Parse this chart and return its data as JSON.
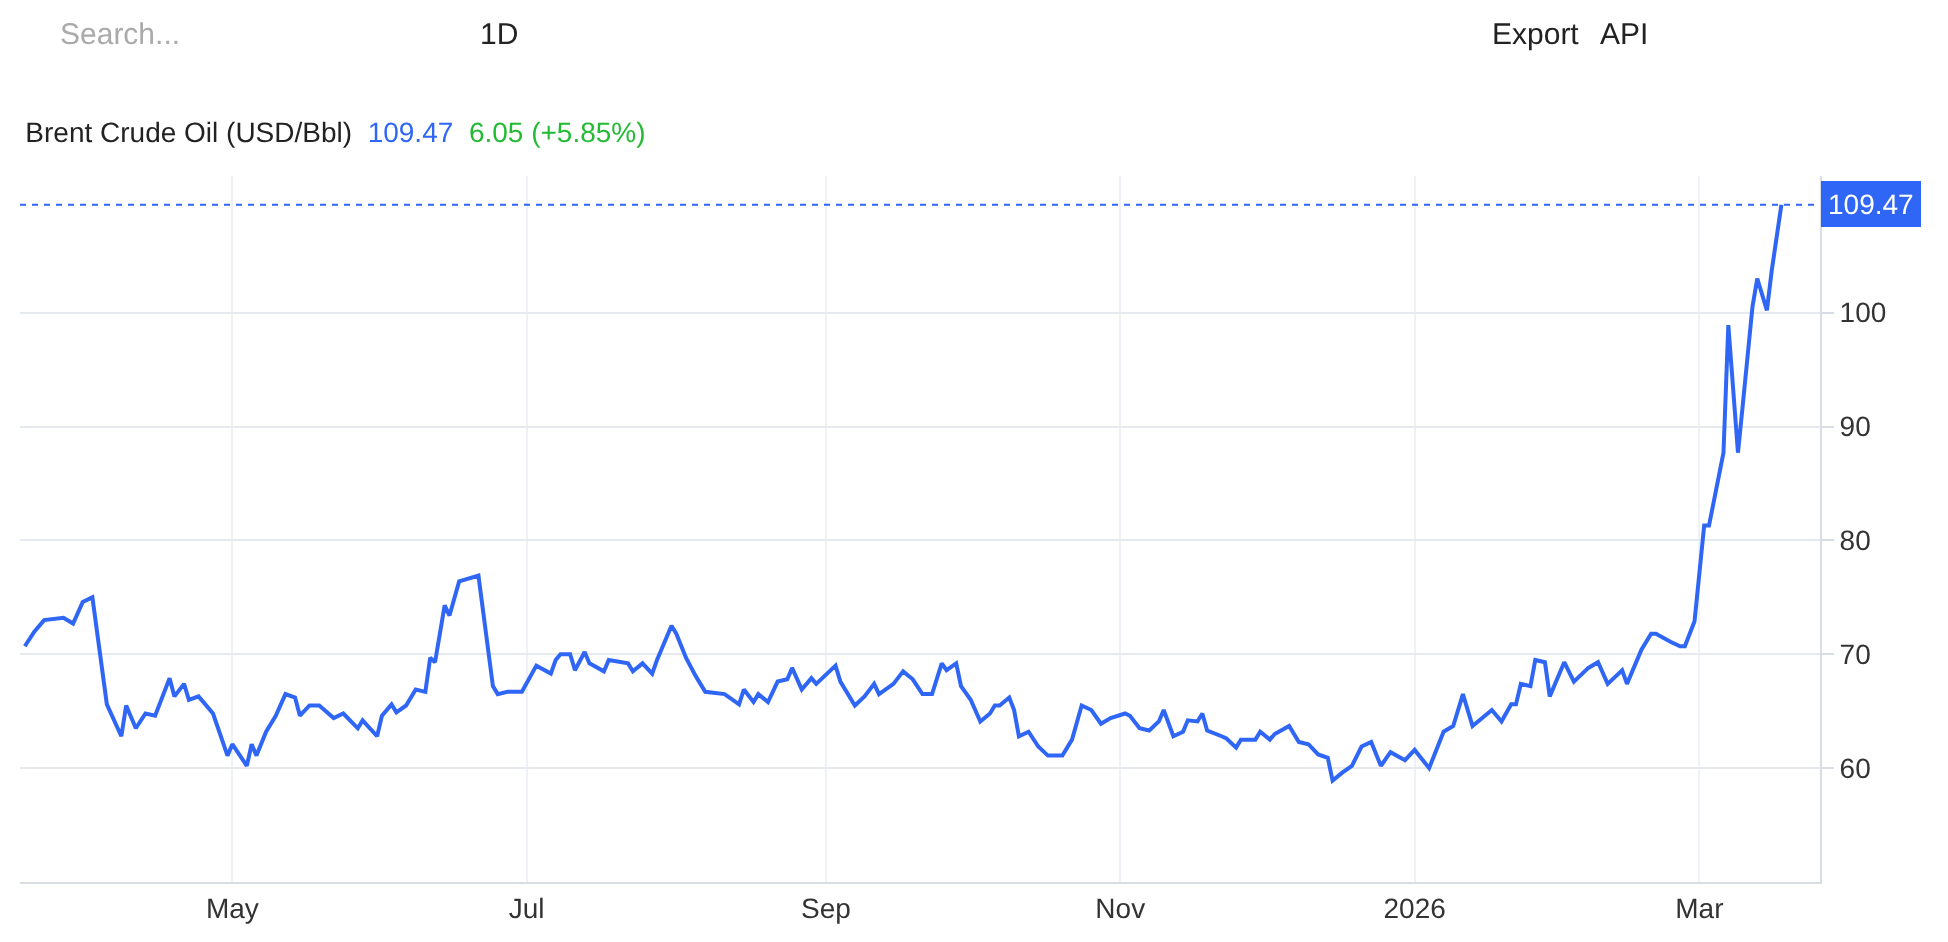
{
  "chart_data": {
    "type": "line",
    "title": "Brent Crude Oil (USD/Bbl)",
    "annotations": [
      "109.47",
      "6.05 (+5.85%)",
      "Search...",
      "1D",
      "Export",
      "API"
    ],
    "x": [
      "2025-03-19",
      "2025-03-21",
      "2025-03-23",
      "2025-03-27",
      "2025-03-29",
      "2025-03-31",
      "2025-04-02",
      "2025-04-05",
      "2025-04-08",
      "2025-04-09",
      "2025-04-11",
      "2025-04-13",
      "2025-04-15",
      "2025-04-18",
      "2025-04-19",
      "2025-04-21",
      "2025-04-22",
      "2025-04-24",
      "2025-04-27",
      "2025-04-30",
      "2025-05-01",
      "2025-05-04",
      "2025-05-05",
      "2025-05-06",
      "2025-05-08",
      "2025-05-10",
      "2025-05-12",
      "2025-05-14",
      "2025-05-15",
      "2025-05-17",
      "2025-05-19",
      "2025-05-22",
      "2025-05-24",
      "2025-05-27",
      "2025-05-28",
      "2025-05-31",
      "2025-06-01",
      "2025-06-03",
      "2025-06-04",
      "2025-06-06",
      "2025-06-08",
      "2025-06-10",
      "2025-06-11",
      "2025-06-12",
      "2025-06-14",
      "2025-06-15",
      "2025-06-17",
      "2025-06-21",
      "2025-06-24",
      "2025-06-25",
      "2025-06-27",
      "2025-06-30",
      "2025-07-03",
      "2025-07-06",
      "2025-07-07",
      "2025-07-08",
      "2025-07-10",
      "2025-07-11",
      "2025-07-13",
      "2025-07-14",
      "2025-07-17",
      "2025-07-18",
      "2025-07-22",
      "2025-07-23",
      "2025-07-25",
      "2025-07-27",
      "2025-07-28",
      "2025-07-31",
      "2025-08-01",
      "2025-08-03",
      "2025-08-05",
      "2025-08-07",
      "2025-08-11",
      "2025-08-14",
      "2025-08-15",
      "2025-08-17",
      "2025-08-18",
      "2025-08-20",
      "2025-08-22",
      "2025-08-24",
      "2025-08-25",
      "2025-08-27",
      "2025-08-29",
      "2025-08-30",
      "2025-09-03",
      "2025-09-04",
      "2025-09-07",
      "2025-09-09",
      "2025-09-11",
      "2025-09-12",
      "2025-09-15",
      "2025-09-17",
      "2025-09-19",
      "2025-09-21",
      "2025-09-23",
      "2025-09-25",
      "2025-09-26",
      "2025-09-28",
      "2025-09-29",
      "2025-10-01",
      "2025-10-03",
      "2025-10-05",
      "2025-10-06",
      "2025-10-07",
      "2025-10-09",
      "2025-10-10",
      "2025-10-11",
      "2025-10-13",
      "2025-10-15",
      "2025-10-17",
      "2025-10-19",
      "2025-10-20",
      "2025-10-22",
      "2025-10-24",
      "2025-10-26",
      "2025-10-28",
      "2025-10-30",
      "2025-11-02",
      "2025-11-03",
      "2025-11-05",
      "2025-11-07",
      "2025-11-09",
      "2025-11-10",
      "2025-11-12",
      "2025-11-14",
      "2025-11-15",
      "2025-11-17",
      "2025-11-18",
      "2025-11-19",
      "2025-11-22",
      "2025-11-23",
      "2025-11-25",
      "2025-11-26",
      "2025-11-29",
      "2025-11-30",
      "2025-12-02",
      "2025-12-03",
      "2025-12-06",
      "2025-12-08",
      "2025-12-10",
      "2025-12-12",
      "2025-12-14",
      "2025-12-15",
      "2025-12-17",
      "2025-12-19",
      "2025-12-21",
      "2025-12-23",
      "2025-12-25",
      "2025-12-27",
      "2025-12-30",
      "2026-01-01",
      "2026-01-04",
      "2026-01-07",
      "2026-01-09",
      "2026-01-11",
      "2026-01-13",
      "2026-01-17",
      "2026-01-19",
      "2026-01-21",
      "2026-01-22",
      "2026-01-23",
      "2026-01-25",
      "2026-01-26",
      "2026-01-28",
      "2026-01-29",
      "2026-02-01",
      "2026-02-03",
      "2026-02-06",
      "2026-02-08",
      "2026-02-10",
      "2026-02-13",
      "2026-02-14",
      "2026-02-17",
      "2026-02-19",
      "2026-02-20",
      "2026-02-23",
      "2026-02-25",
      "2026-02-26",
      "2026-02-28",
      "2026-03-02",
      "2026-03-03",
      "2026-03-06",
      "2026-03-07",
      "2026-03-09",
      "2026-03-10",
      "2026-03-12",
      "2026-03-13",
      "2026-03-15",
      "2026-03-16",
      "2026-03-18"
    ],
    "series": [
      {
        "color": "#2f66f6",
        "values": [
          70.7,
          72.0,
          73.0,
          73.2,
          72.7,
          74.6,
          75.0,
          65.6,
          62.8,
          65.5,
          63.5,
          64.8,
          64.6,
          67.9,
          66.3,
          67.4,
          66.0,
          66.3,
          64.8,
          61.1,
          62.1,
          60.2,
          62.1,
          61.1,
          63.2,
          64.6,
          66.5,
          66.2,
          64.6,
          65.5,
          65.5,
          64.4,
          64.8,
          63.5,
          64.2,
          62.8,
          64.6,
          65.6,
          64.9,
          65.5,
          66.9,
          66.7,
          69.7,
          69.3,
          74.3,
          73.4,
          76.4,
          76.9,
          67.2,
          66.5,
          66.7,
          66.7,
          69.0,
          68.3,
          69.5,
          70.0,
          70.0,
          68.6,
          70.2,
          69.2,
          68.5,
          69.5,
          69.2,
          68.5,
          69.2,
          68.3,
          69.5,
          72.5,
          71.8,
          69.7,
          68.1,
          66.7,
          66.5,
          65.6,
          66.9,
          65.8,
          66.5,
          65.8,
          67.6,
          67.8,
          68.8,
          66.9,
          67.9,
          67.4,
          69.0,
          67.6,
          65.5,
          66.3,
          67.4,
          66.5,
          67.4,
          68.5,
          67.8,
          66.5,
          66.5,
          69.2,
          68.6,
          69.2,
          67.2,
          66.0,
          64.1,
          64.8,
          65.5,
          65.5,
          66.2,
          65.1,
          62.8,
          63.2,
          61.9,
          61.1,
          61.1,
          61.1,
          62.5,
          65.5,
          65.1,
          63.9,
          64.4,
          64.8,
          64.6,
          63.5,
          63.3,
          64.1,
          65.1,
          62.8,
          63.2,
          64.2,
          64.1,
          64.8,
          63.3,
          62.8,
          62.6,
          61.8,
          62.5,
          62.5,
          63.2,
          62.5,
          63.0,
          63.7,
          62.3,
          62.1,
          61.2,
          60.9,
          58.9,
          59.6,
          60.2,
          61.9,
          62.3,
          60.2,
          61.4,
          60.7,
          61.6,
          60.0,
          63.2,
          63.7,
          66.5,
          63.7,
          65.1,
          64.1,
          65.6,
          65.6,
          67.4,
          67.2,
          69.5,
          69.3,
          66.3,
          69.3,
          67.6,
          68.8,
          69.3,
          67.4,
          68.6,
          67.4,
          70.4,
          71.8,
          71.8,
          71.1,
          70.7,
          70.7,
          72.9,
          81.3,
          81.3,
          87.7,
          98.9,
          87.7,
          91.9,
          100.5,
          103.0,
          100.2,
          103.7,
          109.47
        ]
      }
    ],
    "xlim": [
      "2025-03-18",
      "2026-03-26"
    ],
    "xticks": [
      {
        "value": "2025-05-01",
        "label": "May"
      },
      {
        "value": "2025-07-01",
        "label": "Jul"
      },
      {
        "value": "2025-09-01",
        "label": "Sep"
      },
      {
        "value": "2025-11-01",
        "label": "Nov"
      },
      {
        "value": "2026-01-01",
        "label": "2026"
      },
      {
        "value": "2026-03-01",
        "label": "Mar"
      }
    ],
    "ylim": [
      50,
      112
    ],
    "yticks": [
      60,
      70,
      80,
      90,
      100
    ],
    "grid": true,
    "marker": "none",
    "line_style": "solid",
    "ref_lines": [
      {
        "axis": "y",
        "value": 109.47,
        "label": "109.47",
        "color": "#2f66f6",
        "line_style": "dotted"
      }
    ]
  }
}
